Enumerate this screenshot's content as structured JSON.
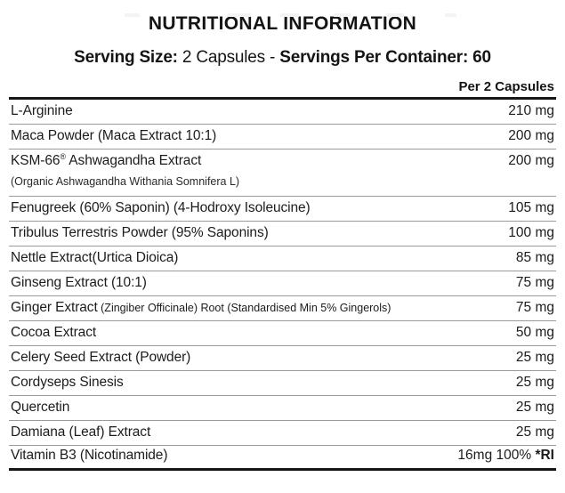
{
  "title": "NUTRITIONAL INFORMATION",
  "serving_line": {
    "part1_bold": "Serving Size:",
    "part2": " 2 Capsules - ",
    "part3_bold": "Servings Per Container: 60"
  },
  "table": {
    "column_header": "Per 2 Capsules",
    "rows": [
      {
        "name": "L-Arginine",
        "amount": "210 mg"
      },
      {
        "name": "Maca Powder (Maca Extract 10:1)",
        "amount": "200 mg"
      },
      {
        "name": "KSM-66",
        "sup": "®",
        "name2": " Ashwagandha Extract",
        "subname": "(Organic Ashwagandha Withania Somnifera L)",
        "amount": "200 mg"
      },
      {
        "name": "Fenugreek (60% Saponin) (4-Hodroxy Isoleucine)",
        "amount": "105 mg"
      },
      {
        "name": "Tribulus Terrestris Powder (95% Saponins)",
        "amount": "100 mg"
      },
      {
        "name": "Nettle Extract(Urtica Dioica)",
        "amount": "85 mg"
      },
      {
        "name": "Ginseng Extract (10:1)",
        "amount": "75 mg"
      },
      {
        "name": "Ginger Extract",
        "small": " (Zingiber Officinale) Root (Standardised Min 5% Gingerols)",
        "amount": "75 mg"
      },
      {
        "name": "Cocoa Extract",
        "amount": "50 mg"
      },
      {
        "name": "Celery Seed Extract (Powder)",
        "amount": "25 mg"
      },
      {
        "name": "Cordyseps Sinesis",
        "amount": "25 mg"
      },
      {
        "name": "Quercetin",
        "amount": "25 mg"
      },
      {
        "name": "Damiana (Leaf) Extract",
        "amount": "25 mg"
      },
      {
        "name": "Vitamin B3 (Nicotinamide)",
        "amount": "16mg 100% ",
        "amount_bold": "*RI"
      }
    ]
  },
  "colors": {
    "thin_rule": "#9b9b9b",
    "thick_rule": "#161616",
    "text": "#1c1c1c",
    "background": "#ffffff"
  }
}
